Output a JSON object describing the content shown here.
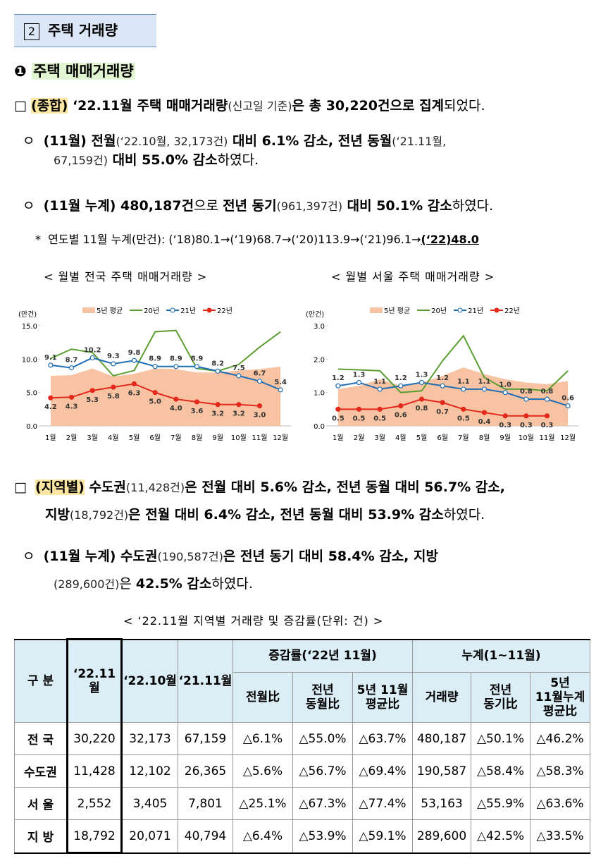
{
  "section": {
    "number": "2",
    "title": "주택 거래량"
  },
  "subsection": {
    "number": "❶",
    "title": "주택 매매거래량"
  },
  "paragraphs": [
    {
      "runs": [
        "□",
        "(종합)",
        " ‘22.11월 주택 매매거래량",
        "(신고일 기준)",
        "은 총 30,220건으로 집계",
        "되었다."
      ]
    },
    {
      "runs": [
        "ㅇ",
        "(11월) 전월",
        "(‘22.10월, 32,173건)",
        " 대비 6.1% 감소, 전년 동월",
        "(‘21.11월,",
        "67,159건)",
        " 대비 55.0% 감소",
        "하였다."
      ]
    },
    {
      "runs": [
        "ㅇ",
        "(11월 누계) 480,187건",
        "으로 ",
        "전년 동기",
        "(961,397건)",
        " 대비 50.1% 감소",
        "하였다."
      ]
    },
    {
      "runs": [
        "*",
        "연도별 11월 누계(만건): (‘18)80.1→(‘19)68.7→(‘20)113.9→(‘21)96.1→",
        "(‘22)48.0"
      ]
    },
    {
      "runs": [
        "□",
        "(지역별)",
        " 수도권",
        "(11,428건)",
        "은 전월 대비 5.6% 감소, 전년 동월 대비 56.7% 감소,",
        "지방",
        "(18,792건)",
        "은 전월 대비 6.4% 감소, 전년 동월 대비 53.9% 감소",
        "하였다."
      ]
    },
    {
      "runs": [
        "ㅇ",
        "(11월 누계) 수도권",
        "(190,587건)",
        "은 전년 동기 대비 58.4% 감소, 지방",
        "(289,600건)",
        "은 ",
        "42.5% 감소",
        "하였다."
      ]
    }
  ],
  "chart_data": [
    {
      "type": "line",
      "title": "< 월별 전국 주택 매매거래량 >",
      "y_label": "(만건)",
      "categories": [
        "1월",
        "2월",
        "3월",
        "4월",
        "5월",
        "6월",
        "7월",
        "8월",
        "9월",
        "10월",
        "11월",
        "12월"
      ],
      "ylim": [
        0,
        15
      ],
      "yticks": [
        {
          "value": 0,
          "label": "0.0"
        },
        {
          "value": 5,
          "label": "5.0"
        },
        {
          "value": 10,
          "label": "10.0"
        },
        {
          "value": 15,
          "label": "15.0"
        }
      ],
      "series": [
        {
          "name": "5년 평균",
          "type": "area",
          "color": "#f8c3a3",
          "values": [
            7.5,
            7.6,
            8.6,
            7.4,
            7.8,
            8.6,
            8.5,
            8.0,
            8.0,
            8.3,
            8.5,
            8.9
          ]
        },
        {
          "name": "20년",
          "type": "line",
          "color": "#5c9e31",
          "values": [
            10.1,
            11.5,
            11.0,
            7.5,
            8.3,
            14.1,
            14.3,
            8.6,
            8.2,
            9.2,
            11.8,
            14.1
          ]
        },
        {
          "name": "21년",
          "type": "line",
          "marker": "hollow",
          "color": "#1f6db3",
          "values": [
            9.1,
            8.7,
            10.2,
            9.3,
            9.8,
            8.9,
            8.9,
            8.9,
            8.2,
            7.5,
            6.7,
            5.4
          ],
          "value_labels": [
            "9.1",
            "8.7",
            "10.2",
            "9.3",
            "9.8",
            "8.9",
            "8.9",
            "8.9",
            "8.2",
            "7.5",
            "6.7",
            "5.4"
          ]
        },
        {
          "name": "22년",
          "type": "line",
          "marker": "filled",
          "color": "#e3281c",
          "values": [
            4.2,
            4.3,
            5.3,
            5.8,
            6.3,
            5.0,
            4.0,
            3.6,
            3.2,
            3.2,
            3.0,
            null
          ],
          "value_labels": [
            "4.2",
            "4.3",
            "5.3",
            "5.8",
            "6.3",
            "5.0",
            "4.0",
            "3.6",
            "3.2",
            "3.2",
            "3.0",
            null
          ]
        }
      ]
    },
    {
      "type": "line",
      "title": "< 월별 서울 주택 매매거래량 >",
      "y_label": "(만건)",
      "categories": [
        "1월",
        "2월",
        "3월",
        "4월",
        "5월",
        "6월",
        "7월",
        "8월",
        "9월",
        "10월",
        "11월",
        "12월"
      ],
      "ylim": [
        0,
        3
      ],
      "yticks": [
        {
          "value": 0,
          "label": "0.0"
        },
        {
          "value": 1,
          "label": "1.0"
        },
        {
          "value": 2,
          "label": "2.0"
        },
        {
          "value": 3,
          "label": "3.0"
        }
      ],
      "series": [
        {
          "name": "5년 평균",
          "type": "area",
          "color": "#f8c3a3",
          "values": [
            1.1,
            1.2,
            1.4,
            1.2,
            1.3,
            1.5,
            1.75,
            1.55,
            1.4,
            1.3,
            1.25,
            1.35
          ]
        },
        {
          "name": "20년",
          "type": "line",
          "color": "#5c9e31",
          "values": [
            1.7,
            1.68,
            1.65,
            1.0,
            1.05,
            1.95,
            2.7,
            1.45,
            1.1,
            1.1,
            1.05,
            1.65
          ]
        },
        {
          "name": "21년",
          "type": "line",
          "marker": "hollow",
          "color": "#1f6db3",
          "values": [
            1.2,
            1.3,
            1.1,
            1.2,
            1.3,
            1.2,
            1.1,
            1.1,
            1.0,
            0.8,
            0.8,
            0.6
          ],
          "value_labels": [
            "1.2",
            "1.3",
            "1.1",
            "1.2",
            "1.3",
            "1.2",
            "1.1",
            "1.1",
            "1.0",
            "0.8",
            "0.8",
            "0.6"
          ]
        },
        {
          "name": "22년",
          "type": "line",
          "marker": "filled",
          "color": "#e3281c",
          "values": [
            0.5,
            0.5,
            0.5,
            0.6,
            0.8,
            0.7,
            0.5,
            0.4,
            0.3,
            0.3,
            0.3,
            null
          ],
          "value_labels": [
            "0.5",
            "0.5",
            "0.5",
            "0.6",
            "0.8",
            "0.7",
            "0.5",
            "0.4",
            "0.3",
            "0.3",
            "0.3",
            null
          ]
        }
      ]
    }
  ],
  "table": {
    "caption": "< ‘22.11월 지역별 거래량 및 증감률(단위: 건) >",
    "header": [
      "구 분",
      "‘22.11월",
      "‘22.10월",
      "‘21.11월",
      "증감률(‘22년 11월)",
      "누계(1~11월)"
    ],
    "subheader": [
      "전월比",
      "전년\n동월比",
      "5년 11월\n평균比",
      "거래량",
      "전년\n동기比",
      "5년\n11월누계\n평균比"
    ],
    "rows": [
      [
        "전 국",
        "30,220",
        "32,173",
        "67,159",
        "△6.1%",
        "△55.0%",
        "△63.7%",
        "480,187",
        "△50.1%",
        "△46.2%"
      ],
      [
        "수도권",
        "11,428",
        "12,102",
        "26,365",
        "△5.6%",
        "△56.7%",
        "△69.4%",
        "190,587",
        "△58.4%",
        "△58.3%"
      ],
      [
        "서 울",
        "2,552",
        "3,405",
        "7,801",
        "△25.1%",
        "△67.3%",
        "△77.4%",
        "53,163",
        "△55.9%",
        "△63.6%"
      ],
      [
        "지 방",
        "18,792",
        "20,071",
        "40,794",
        "△6.4%",
        "△53.9%",
        "△59.1%",
        "289,600",
        "△42.5%",
        "△33.5%"
      ]
    ]
  }
}
